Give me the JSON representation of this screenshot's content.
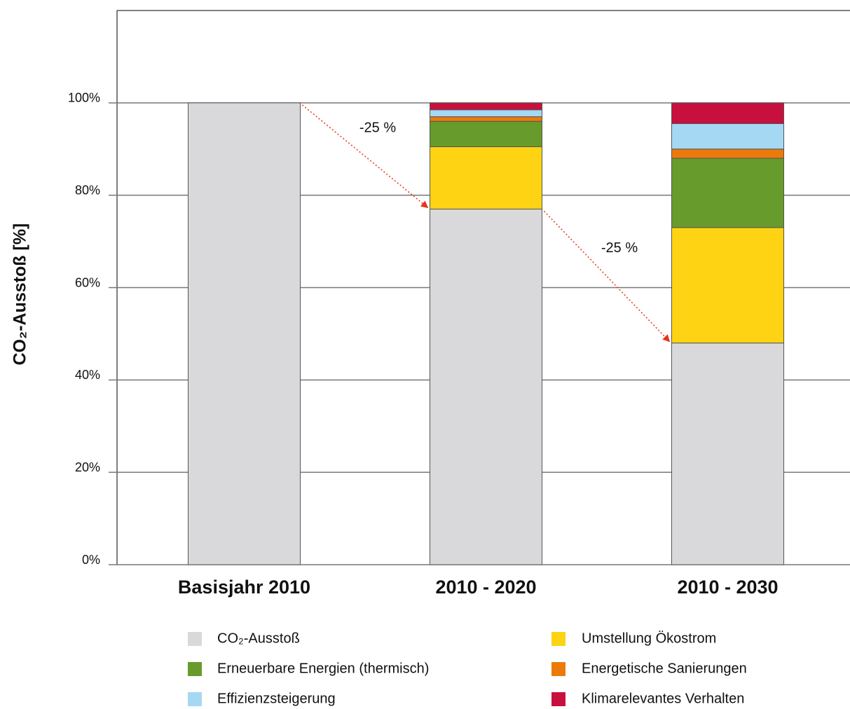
{
  "chart_data": {
    "type": "stacked_bar",
    "y_label": "CO₂-Ausstoß [%]",
    "categories": [
      "Basisjahr 2010",
      "2010 - 2020",
      "2010 - 2030"
    ],
    "series": [
      {
        "name": "CO₂-Ausstoß",
        "color": "#d9d9db",
        "values": [
          100,
          77,
          48
        ]
      },
      {
        "name": "Umstellung Ökostrom",
        "color": "#fed313",
        "values": [
          0,
          13.5,
          25
        ]
      },
      {
        "name": "Erneuerbare Energien (thermisch)",
        "color": "#679b2b",
        "values": [
          0,
          5.5,
          15
        ]
      },
      {
        "name": "Energetische Sanierungen",
        "color": "#ec7a0a",
        "values": [
          0,
          1,
          2
        ]
      },
      {
        "name": "Effizienzsteigerung",
        "color": "#a5d8f3",
        "values": [
          0,
          1.5,
          5.5
        ]
      },
      {
        "name": "Klimarelevantes Verhalten",
        "color": "#c8103f",
        "values": [
          0,
          1.5,
          4.5
        ]
      }
    ],
    "annotations": [
      "-25 %",
      "-25 %"
    ],
    "annotation_color": "#e8321e",
    "ylim": [
      0,
      120
    ],
    "yticks": [
      {
        "value": 0,
        "label": "0%"
      },
      {
        "value": 20,
        "label": "20%"
      },
      {
        "value": 40,
        "label": "40%"
      },
      {
        "value": 60,
        "label": "60%"
      },
      {
        "value": 80,
        "label": "80%"
      },
      {
        "value": 100,
        "label": "100%"
      }
    ],
    "grid": true
  }
}
